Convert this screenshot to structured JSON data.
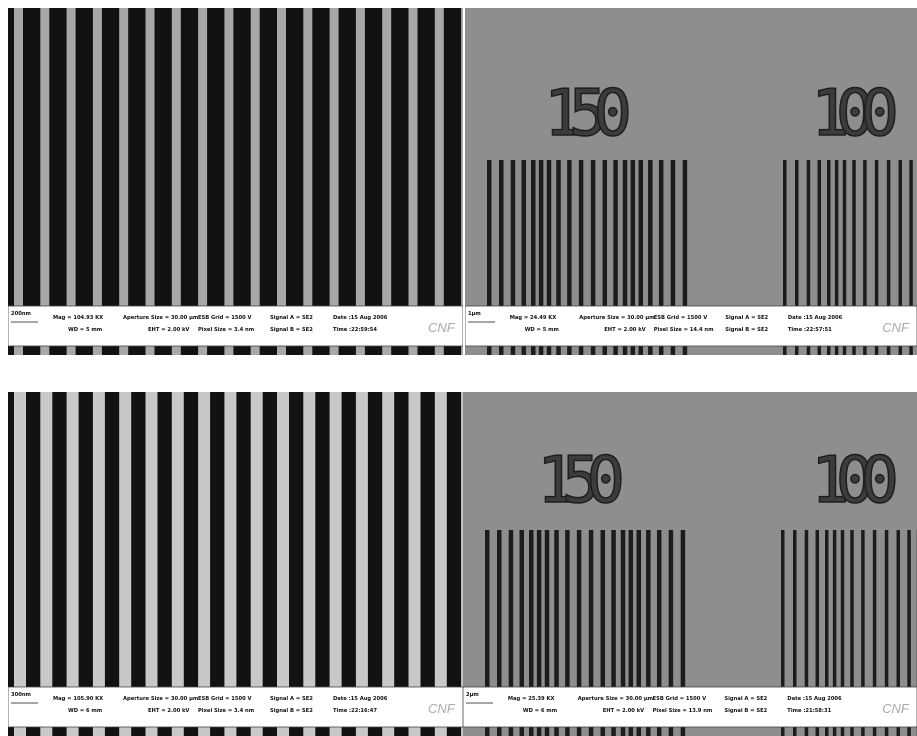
{
  "panels": [
    {
      "scale_bar": "200nm",
      "fields": [
        "Mag = 104.93 KX",
        "WD = 5 mm",
        "Aperture Size = 30.00 µm",
        "EHT = 2.00 kV",
        "ESB Grid = 1500 V",
        "Pixel Size = 3.4 nm",
        "Signal A = SE2",
        "Signal B = SE2",
        "Date :15 Aug 2006",
        "Time :22:59:54"
      ],
      "logo": "CNF"
    },
    {
      "scale_bar": "1µm",
      "fields": [
        "Mag = 24.49 KX",
        "WD = 5 mm",
        "Aperture Size = 30.00 µm",
        "EHT = 2.00 kV",
        "ESB Grid = 1500 V",
        "Pixel Size = 14.4 nm",
        "Signal A = SE2",
        "Signal B = SE2",
        "Date :15 Aug 2006",
        "Time :22:57:51"
      ],
      "logo": "CNF",
      "labels": [
        "150",
        "100"
      ]
    },
    {
      "scale_bar": "300nm",
      "fields": [
        "Mag = 105.90 KX",
        "WD = 6 mm",
        "Aperture Size = 30.00 µm",
        "EHT = 2.00 kV",
        "ESB Grid = 1500 V",
        "Pixel Size = 3.4 nm",
        "Signal A = SE2",
        "Signal B = SE2",
        "Date :15 Aug 2006",
        "Time :22:16:47"
      ],
      "logo": "CNF"
    },
    {
      "scale_bar": "2µm",
      "fields": [
        "Mag = 25.39 KX",
        "WD = 6 mm",
        "Aperture Size = 30.00 µm",
        "EHT = 2.00 kV",
        "ESB Grid = 1500 V",
        "Pixel Size = 13.9 nm",
        "Signal A = SE2",
        "Signal B = SE2",
        "Date :15 Aug 2006",
        "Time :21:58:31"
      ],
      "logo": "CNF",
      "labels": [
        "150",
        "100"
      ]
    }
  ]
}
